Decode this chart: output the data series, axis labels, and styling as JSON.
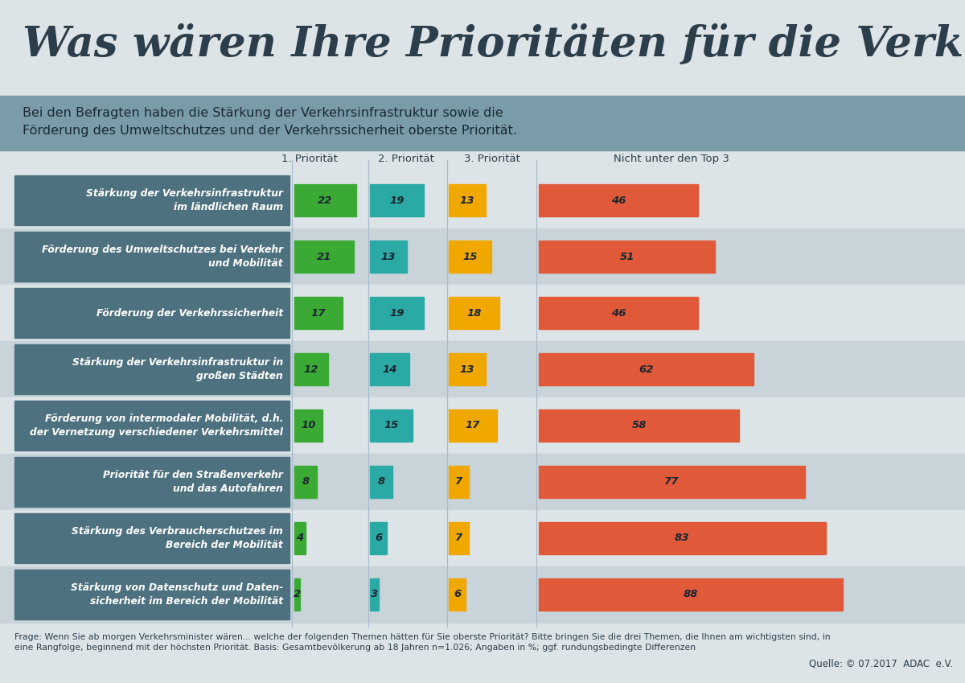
{
  "title": "Was wären Ihre Prioritäten für die Verkehrspolitik?",
  "subtitle_line1": "Bei den Befragten haben die Stärkung der Verkehrsinfrastruktur sowie die",
  "subtitle_line2": "Förderung des Umweltschutzes und der Verkehrssicherheit oberste Priorität.",
  "categories": [
    "Stärkung der Verkehrsinfrastruktur\nim ländlichen Raum",
    "Förderung des Umweltschutzes bei Verkehr\nund Mobilität",
    "Förderung der Verkehrssicherheit",
    "Stärkung der Verkehrsinfrastruktur in\ngroßen Städten",
    "Förderung von intermodaler Mobilität, d.h.\nder Vernetzung verschiedener Verkehrsmittel",
    "Priorität für den Straßenverkehr\nund das Autofahren",
    "Stärkung des Verbraucherschutzes im\nBereich der Mobilität",
    "Stärkung von Datenschutz und Daten-\nsicherheit im Bereich der Mobilität"
  ],
  "prio1": [
    22,
    21,
    17,
    12,
    10,
    8,
    4,
    2
  ],
  "prio2": [
    19,
    13,
    19,
    14,
    15,
    8,
    6,
    3
  ],
  "prio3": [
    13,
    15,
    18,
    13,
    17,
    7,
    7,
    6
  ],
  "not_top3": [
    46,
    51,
    46,
    62,
    58,
    77,
    83,
    88
  ],
  "color_prio1": "#3aaa35",
  "color_prio2": "#2baaa5",
  "color_prio3": "#f0a800",
  "color_not_top3": "#e05a3a",
  "color_label_bg": "#4d717f",
  "color_bg_light": "#dde4e8",
  "color_bg_dark": "#c8d4da",
  "color_subtitle_bg": "#7a9ba8",
  "col_headers": [
    "1. Priorität",
    "2. Priorität",
    "3. Priorität",
    "Nicht unter den Top 3"
  ],
  "footnote": "Frage: Wenn Sie ab morgen Verkehrsminister wären... welche der folgenden Themen hätten für Sie oberste Priorität? Bitte bringen Sie die drei Themen, die Ihnen am wichtigsten sind, in\neine Rangfolge, beginnend mit der höchsten Priorität. Basis: Gesamtbevölkerung ab 18 Jahren n=1.026; Angaben in %; ggf. rundungsbedingte Differenzen",
  "source": "Quelle: © 07.2017  ADAC  e.V."
}
